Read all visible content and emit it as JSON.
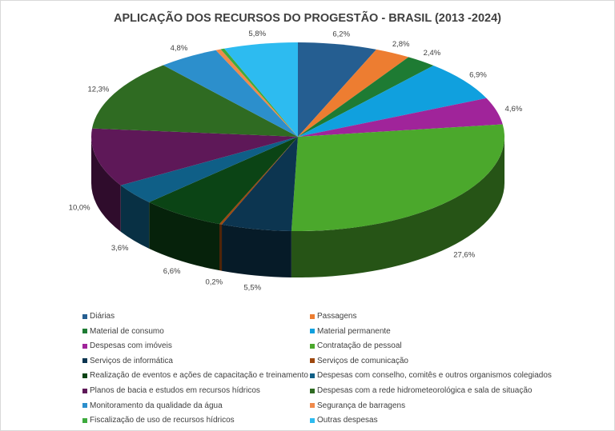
{
  "chart_data": {
    "type": "pie",
    "title": "APLICAÇÃO DOS RECURSOS DO PROGESTÃO - BRASIL (2013 -2024)",
    "style": "3d",
    "legend_position": "bottom",
    "slices": [
      {
        "name": "Diárias",
        "value": 6.2,
        "label": "6,2%",
        "color": "#255e91"
      },
      {
        "name": "Passagens",
        "value": 2.8,
        "label": "2,8%",
        "color": "#ed7d31"
      },
      {
        "name": "Material de consumo",
        "value": 2.4,
        "label": "2,4%",
        "color": "#1e7b33"
      },
      {
        "name": "Material permanente",
        "value": 6.9,
        "label": "6,9%",
        "color": "#10a0de"
      },
      {
        "name": "Despesas com imóveis",
        "value": 4.6,
        "label": "4,6%",
        "color": "#a0249a"
      },
      {
        "name": "Contratação de pessoal",
        "value": 27.6,
        "label": "27,6%",
        "color": "#4ba82c"
      },
      {
        "name": "Serviços de informática",
        "value": 5.5,
        "label": "5,5%",
        "color": "#0c3550"
      },
      {
        "name": "Serviços de comunicação",
        "value": 0.2,
        "label": "0,2%",
        "color": "#9e480e"
      },
      {
        "name": "Realização de eventos e ações de capacitação e treinamento",
        "value": 6.6,
        "label": "6,6%",
        "color": "#0b4415"
      },
      {
        "name": "Despesas com conselho, comitês e outros organismos colegiados",
        "value": 3.6,
        "label": "3,6%",
        "color": "#0f5f87"
      },
      {
        "name": "Planos de bacia e estudos em recursos hídricos",
        "value": 10.0,
        "label": "10,0%",
        "color": "#5e1858"
      },
      {
        "name": "Despesas com a rede hidrometeorológica e sala de situação",
        "value": 12.3,
        "label": "12,3%",
        "color": "#2f6b22"
      },
      {
        "name": "Monitoramento da qualidade da água",
        "value": 4.8,
        "label": "4,8%",
        "color": "#2c8fcc"
      },
      {
        "name": "Segurança de barragens",
        "value": 0.4,
        "label": "",
        "color": "#f08a4b"
      },
      {
        "name": "Fiscalização de uso de recursos hídricos",
        "value": 0.3,
        "label": "",
        "color": "#3daa3d"
      },
      {
        "name": "Outras despesas",
        "value": 5.8,
        "label": "5,8%",
        "color": "#2dbbf0"
      }
    ]
  }
}
